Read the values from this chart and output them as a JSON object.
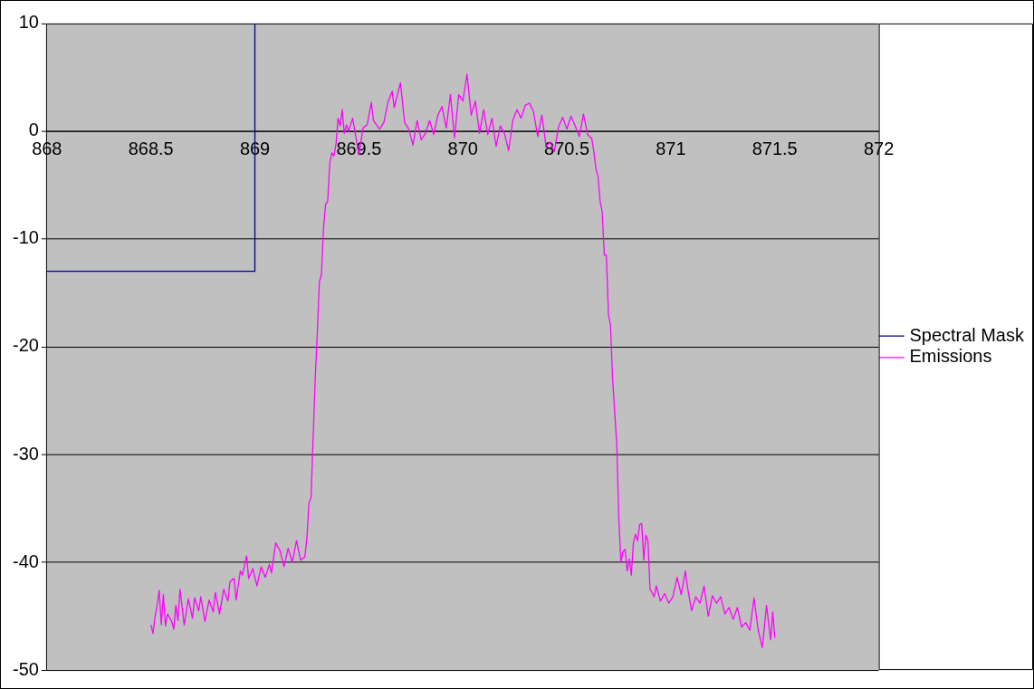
{
  "chart_data": {
    "type": "line",
    "xlim": [
      868,
      872
    ],
    "xticks": [
      868,
      868.5,
      869,
      869.5,
      870,
      870.5,
      871,
      871.5,
      872
    ],
    "ylim": [
      -50,
      10
    ],
    "yticks": [
      -50,
      -40,
      -30,
      -20,
      -10,
      0,
      10
    ],
    "grid": "y",
    "legend": "right",
    "marker": "none",
    "line_style": "solid",
    "series": [
      {
        "name": "Spectral Mask",
        "color": "#000080",
        "x": [
          868,
          869,
          869
        ],
        "values": [
          -13,
          -13,
          10
        ]
      },
      {
        "name": "Emissions",
        "color": "#ff00ff",
        "x": [
          868.5,
          868.51,
          868.52,
          868.53,
          868.54,
          868.55,
          868.56,
          868.57,
          868.58,
          868.6,
          868.61,
          868.62,
          868.63,
          868.64,
          868.66,
          868.68,
          868.7,
          868.71,
          868.73,
          868.74,
          868.76,
          868.78,
          868.8,
          868.81,
          868.83,
          868.85,
          868.87,
          868.88,
          868.9,
          868.91,
          868.93,
          868.94,
          868.96,
          868.97,
          868.99,
          869.01,
          869.03,
          869.05,
          869.07,
          869.08,
          869.1,
          869.12,
          869.14,
          869.16,
          869.18,
          869.2,
          869.22,
          869.24,
          869.25,
          869.26,
          869.27,
          869.28,
          869.29,
          869.3,
          869.31,
          869.32,
          869.33,
          869.34,
          869.35,
          869.36,
          869.37,
          869.38,
          869.39,
          869.4,
          869.41,
          869.42,
          869.43,
          869.44,
          869.45,
          869.47,
          869.48,
          869.5,
          869.52,
          869.54,
          869.56,
          869.57,
          869.6,
          869.62,
          869.64,
          869.66,
          869.67,
          869.7,
          869.72,
          869.74,
          869.76,
          869.78,
          869.8,
          869.82,
          869.84,
          869.86,
          869.88,
          869.9,
          869.92,
          869.94,
          869.96,
          869.98,
          870,
          870.02,
          870.04,
          870.06,
          870.08,
          870.1,
          870.12,
          870.14,
          870.16,
          870.18,
          870.2,
          870.22,
          870.24,
          870.26,
          870.28,
          870.3,
          870.32,
          870.34,
          870.36,
          870.38,
          870.4,
          870.42,
          870.44,
          870.46,
          870.48,
          870.5,
          870.52,
          870.54,
          870.56,
          870.58,
          870.6,
          870.62,
          870.63,
          870.64,
          870.65,
          870.66,
          870.67,
          870.68,
          870.69,
          870.7,
          870.71,
          870.72,
          870.73,
          870.74,
          870.75,
          870.76,
          870.77,
          870.78,
          870.79,
          870.8,
          870.81,
          870.82,
          870.83,
          870.84,
          870.85,
          870.86,
          870.87,
          870.88,
          870.89,
          870.9,
          870.92,
          870.93,
          870.95,
          870.97,
          870.99,
          871.01,
          871.03,
          871.05,
          871.07,
          871.08,
          871.1,
          871.12,
          871.14,
          871.16,
          871.18,
          871.2,
          871.22,
          871.24,
          871.26,
          871.28,
          871.3,
          871.32,
          871.34,
          871.36,
          871.38,
          871.4,
          871.42,
          871.44,
          871.46,
          871.48,
          871.49,
          871.5
        ],
        "values": [
          -45.8,
          -46.6,
          -45,
          -44,
          -42.6,
          -45.8,
          -43,
          -45.9,
          -44.8,
          -45.5,
          -46.2,
          -44,
          -45.4,
          -42.5,
          -45.8,
          -43.4,
          -45.2,
          -43.3,
          -44.5,
          -43.2,
          -45.5,
          -43.5,
          -44.6,
          -42.8,
          -44.8,
          -42.5,
          -43.6,
          -41.8,
          -41.5,
          -43.5,
          -40.8,
          -41.2,
          -39.4,
          -41.5,
          -40.6,
          -42.2,
          -40.4,
          -41.4,
          -40.2,
          -41,
          -38.2,
          -38.9,
          -40.4,
          -38.7,
          -40,
          -38,
          -39.8,
          -39.5,
          -37.8,
          -34.5,
          -34,
          -28.5,
          -23,
          -18.8,
          -14,
          -13.3,
          -9,
          -6.8,
          -6.5,
          -3,
          -2,
          -2.3,
          -1.2,
          1.2,
          0.5,
          2,
          -0.2,
          0.6,
          0,
          1.2,
          0.1,
          -2.2,
          0.3,
          0.6,
          2.7,
          1,
          0.2,
          0.8,
          2.7,
          3.7,
          2.2,
          4.5,
          0.8,
          0.2,
          -1.3,
          1,
          -0.8,
          -0.2,
          1,
          -0.3,
          1.5,
          2.3,
          0.3,
          3.4,
          -0.6,
          3.4,
          2.8,
          5.3,
          1.5,
          2.8,
          -0.2,
          2,
          -0.3,
          1.2,
          -1.4,
          0.5,
          -0.2,
          -1.8,
          1,
          2,
          1.2,
          2.4,
          2.6,
          1.8,
          -0.5,
          1.5,
          -1.4,
          -1,
          -1.9,
          0.4,
          1.3,
          0.2,
          1.4,
          0.5,
          -0.5,
          1.6,
          -0.3,
          -0.7,
          -1.9,
          -3.5,
          -4.2,
          -6.5,
          -7.5,
          -11.5,
          -11.5,
          -17,
          -18,
          -23,
          -26,
          -29,
          -36,
          -40,
          -39,
          -38.8,
          -40.8,
          -39.7,
          -41.2,
          -38.2,
          -37.4,
          -38,
          -36.5,
          -36.4,
          -39.8,
          -37.5,
          -38,
          -42.5,
          -43.2,
          -42.2,
          -43.6,
          -42.9,
          -43.8,
          -43.2,
          -41.4,
          -43,
          -40.8,
          -42.3,
          -44.5,
          -43.2,
          -43.8,
          -42.2,
          -45,
          -43.1,
          -43.8,
          -43.2,
          -44.8,
          -44.2,
          -45.3,
          -44.2,
          -46,
          -45.6,
          -46.3,
          -43.3,
          -46.3,
          -47.9,
          -44,
          -47.2,
          -44.6,
          -47
        ]
      }
    ]
  }
}
